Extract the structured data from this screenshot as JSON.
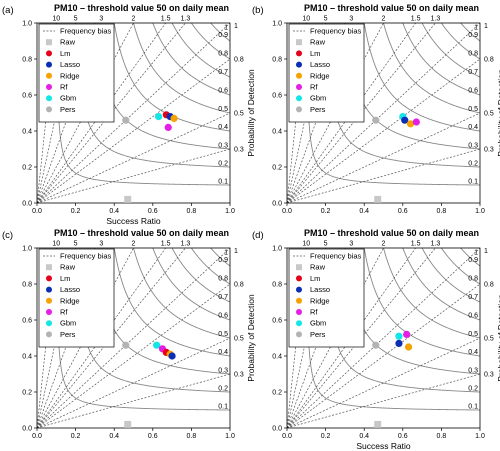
{
  "figure": {
    "xlabel": "Success Ratio",
    "ylabel": "Probability of Detection"
  },
  "legend": {
    "bias_label": "Frequency bias",
    "entries": [
      {
        "name": "Raw",
        "shape": "square",
        "color": "#c8c8c8"
      },
      {
        "name": "Lm",
        "shape": "circle",
        "color": "#e6001a"
      },
      {
        "name": "Lasso",
        "shape": "circle",
        "color": "#0a2fb5"
      },
      {
        "name": "Ridge",
        "shape": "circle",
        "color": "#f5a200"
      },
      {
        "name": "Rf",
        "shape": "circle",
        "color": "#e51ee5"
      },
      {
        "name": "Gbm",
        "shape": "circle",
        "color": "#12e6e6"
      },
      {
        "name": "Pers",
        "shape": "circle",
        "color": "#b3b3b3"
      }
    ]
  },
  "chart_data": [
    {
      "panel": "(a)",
      "type": "scatter",
      "title": "PM10 – threshold value 50 on daily mean",
      "xlabel": "Success Ratio",
      "ylabel": "Probability of Detection",
      "xlim": [
        0,
        1
      ],
      "ylim": [
        0,
        1
      ],
      "xticks": [
        "0.0",
        "0.2",
        "0.4",
        "0.6",
        "0.8",
        "1.0"
      ],
      "yticks": [
        "0.0",
        "0.2",
        "0.4",
        "0.6",
        "0.8",
        "1.0"
      ],
      "bias_lines": [
        0.3,
        0.5,
        0.8,
        1,
        1.3,
        1.5,
        2,
        3,
        5,
        10
      ],
      "bias_labels": [
        "10",
        "5",
        "3",
        "2",
        "1.5",
        "1.3",
        "1"
      ],
      "csi_lines": [
        0.1,
        0.2,
        0.3,
        0.4,
        0.5,
        0.6,
        0.7,
        0.8,
        0.9
      ],
      "csi_labels": [
        "0.1",
        "0.2",
        "0.3",
        "0.4",
        "0.5",
        "0.6",
        "0.7",
        "0.8",
        "0.9",
        "1"
      ],
      "bias_right_labels": [
        "0.3",
        "0.5",
        "0.8"
      ],
      "points": [
        {
          "name": "Raw",
          "x": 0.47,
          "y": 0.02
        },
        {
          "name": "Pers",
          "x": 0.46,
          "y": 0.46
        },
        {
          "name": "Gbm",
          "x": 0.63,
          "y": 0.48
        },
        {
          "name": "Lm",
          "x": 0.67,
          "y": 0.49
        },
        {
          "name": "Lasso",
          "x": 0.69,
          "y": 0.48
        },
        {
          "name": "Ridge",
          "x": 0.71,
          "y": 0.47
        },
        {
          "name": "Rf",
          "x": 0.68,
          "y": 0.42
        }
      ]
    },
    {
      "panel": "(b)",
      "type": "scatter",
      "title": "PM10 – threshold value 50 on daily mean",
      "xlabel": "",
      "ylabel": "Probability of Detection",
      "xlim": [
        0,
        1
      ],
      "ylim": [
        0,
        1
      ],
      "xticks": [
        "0.0",
        "0.2",
        "0.4",
        "0.6",
        "0.8",
        "1.0"
      ],
      "yticks": [
        "0.0",
        "0.2",
        "0.4",
        "0.6",
        "0.8",
        "1.0"
      ],
      "bias_lines": [
        0.3,
        0.5,
        0.8,
        1,
        1.3,
        1.5,
        2,
        3,
        5,
        10
      ],
      "bias_labels": [
        "10",
        "5",
        "3",
        "2",
        "1.5",
        "1.3",
        "1"
      ],
      "csi_lines": [
        0.1,
        0.2,
        0.3,
        0.4,
        0.5,
        0.6,
        0.7,
        0.8,
        0.9
      ],
      "csi_labels": [
        "0.1",
        "0.2",
        "0.3",
        "0.4",
        "0.5",
        "0.6",
        "0.7",
        "0.8",
        "0.9",
        "1"
      ],
      "bias_right_labels": [
        "0.3",
        "0.5",
        "0.8"
      ],
      "points": [
        {
          "name": "Raw",
          "x": 0.47,
          "y": 0.02
        },
        {
          "name": "Pers",
          "x": 0.46,
          "y": 0.46
        },
        {
          "name": "Gbm",
          "x": 0.6,
          "y": 0.48
        },
        {
          "name": "Lasso",
          "x": 0.61,
          "y": 0.46
        },
        {
          "name": "Ridge",
          "x": 0.64,
          "y": 0.44
        },
        {
          "name": "Rf",
          "x": 0.67,
          "y": 0.45
        }
      ]
    },
    {
      "panel": "(c)",
      "type": "scatter",
      "title": "PM10 – threshold value 50 on daily mean",
      "xlabel": "",
      "ylabel": "Probability of Detection",
      "xlim": [
        0,
        1
      ],
      "ylim": [
        0,
        1
      ],
      "xticks": [
        "0.0",
        "0.2",
        "0.4",
        "0.6",
        "0.8",
        "1.0"
      ],
      "yticks": [
        "0.0",
        "0.2",
        "0.4",
        "0.6",
        "0.8",
        "1.0"
      ],
      "bias_lines": [
        0.3,
        0.5,
        0.8,
        1,
        1.3,
        1.5,
        2,
        3,
        5,
        10
      ],
      "bias_labels": [
        "10",
        "5",
        "3",
        "2",
        "1.5",
        "1.3",
        "1"
      ],
      "csi_lines": [
        0.1,
        0.2,
        0.3,
        0.4,
        0.5,
        0.6,
        0.7,
        0.8,
        0.9
      ],
      "csi_labels": [
        "0.1",
        "0.2",
        "0.3",
        "0.4",
        "0.5",
        "0.6",
        "0.7",
        "0.8",
        "0.9",
        "1"
      ],
      "bias_right_labels": [
        "0.3",
        "0.5",
        "0.8"
      ],
      "points": [
        {
          "name": "Raw",
          "x": 0.47,
          "y": 0.02
        },
        {
          "name": "Pers",
          "x": 0.46,
          "y": 0.46
        },
        {
          "name": "Gbm",
          "x": 0.62,
          "y": 0.46
        },
        {
          "name": "Rf",
          "x": 0.65,
          "y": 0.44
        },
        {
          "name": "Lm",
          "x": 0.67,
          "y": 0.42
        },
        {
          "name": "Ridge",
          "x": 0.69,
          "y": 0.41
        },
        {
          "name": "Lasso",
          "x": 0.7,
          "y": 0.4
        }
      ]
    },
    {
      "panel": "(d)",
      "type": "scatter",
      "title": "PM10 – threshold value 50 on daily mean",
      "xlabel": "Success Ratio",
      "ylabel": "Probability of Detection",
      "xlim": [
        0,
        1
      ],
      "ylim": [
        0,
        1
      ],
      "xticks": [
        "0.0",
        "0.2",
        "0.4",
        "0.6",
        "0.8",
        "1.0"
      ],
      "yticks": [
        "0.0",
        "0.2",
        "0.4",
        "0.6",
        "0.8",
        "1.0"
      ],
      "bias_lines": [
        0.3,
        0.5,
        0.8,
        1,
        1.3,
        1.5,
        2,
        3,
        5,
        10
      ],
      "bias_labels": [
        "10",
        "5",
        "3",
        "2",
        "1.5",
        "1.3",
        "1"
      ],
      "csi_lines": [
        0.1,
        0.2,
        0.3,
        0.4,
        0.5,
        0.6,
        0.7,
        0.8,
        0.9
      ],
      "csi_labels": [
        "0.1",
        "0.2",
        "0.3",
        "0.4",
        "0.5",
        "0.6",
        "0.7",
        "0.8",
        "0.9",
        "1"
      ],
      "bias_right_labels": [
        "0.3",
        "0.5",
        "0.8"
      ],
      "points": [
        {
          "name": "Raw",
          "x": 0.47,
          "y": 0.02
        },
        {
          "name": "Pers",
          "x": 0.46,
          "y": 0.46
        },
        {
          "name": "Gbm",
          "x": 0.58,
          "y": 0.51
        },
        {
          "name": "Rf",
          "x": 0.62,
          "y": 0.52
        },
        {
          "name": "Lasso",
          "x": 0.58,
          "y": 0.47
        },
        {
          "name": "Ridge",
          "x": 0.63,
          "y": 0.45
        }
      ]
    }
  ]
}
